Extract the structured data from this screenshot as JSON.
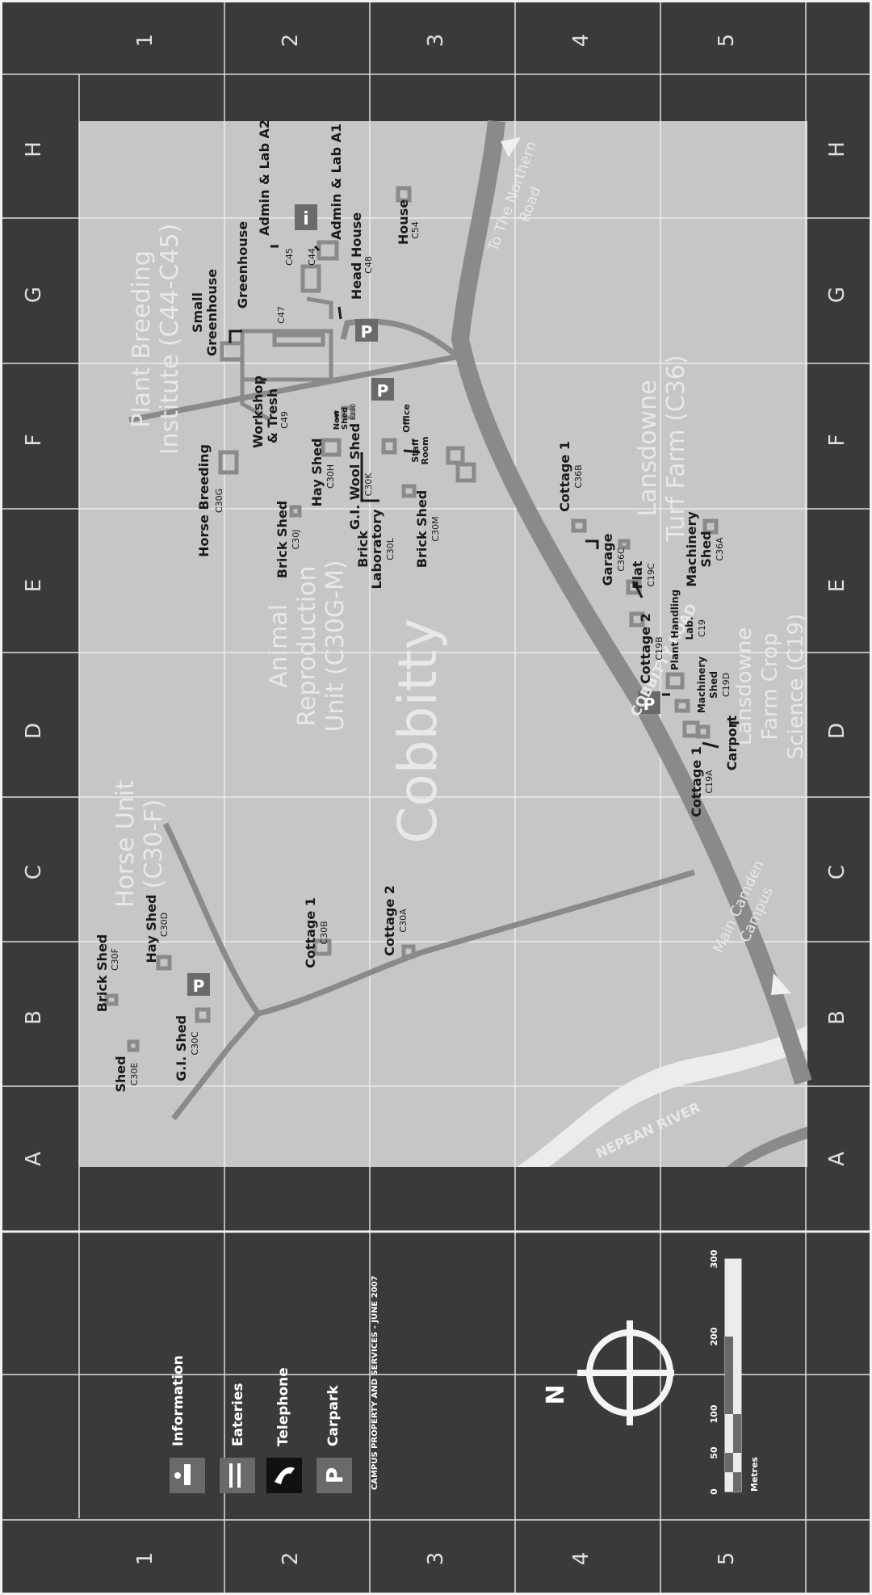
{
  "grid": {
    "columns": [
      "H",
      "G",
      "F",
      "E",
      "D",
      "C",
      "B",
      "A"
    ],
    "rows": [
      "1",
      "2",
      "3",
      "4",
      "5"
    ]
  },
  "zones": {
    "plant_breeding_1": "Plant Breeding",
    "plant_breeding_2": "Institute (C44-C45)",
    "horse_unit_1": "Horse Unit",
    "horse_unit_2": "(C30-F)",
    "animal_repro_1": "Animal",
    "animal_repro_2": "Reproduction",
    "animal_repro_3": "Unit (C30G-M)",
    "lansdowne_turf_1": "Lansdowne",
    "lansdowne_turf_2": "Turf Farm (C36)",
    "lansdowne_crop_1": "Lansdowne",
    "lansdowne_crop_2": "Farm Crop",
    "lansdowne_crop_3": "Science (C19)",
    "locality": "Cobbitty"
  },
  "roads": {
    "cobbitty_road": "COBBITTY ROAD",
    "nepean_river": "NEPEAN RIVER",
    "northern_road_1": "To The Northern",
    "northern_road_2": "Road",
    "main_campus_1": "Main Camden",
    "main_campus_2": "Campus"
  },
  "buildings": {
    "admin_a2": "Admin & Lab A2",
    "admin_a1": "Admin & Lab A1",
    "greenhouse": "Greenhouse",
    "c45": "C45",
    "c44": "C44",
    "small_greenhouse_1": "Small",
    "small_greenhouse_2": "Greenhouse",
    "c47": "C47",
    "head_house": "Head House",
    "c48": "C48",
    "house": "House",
    "c54": "C54",
    "workshop_1": "Workshop",
    "workshop_2": "& Tresh",
    "c49": "C49",
    "new_shed_1": "New",
    "new_shed_2": "Shed",
    "e230": "E230",
    "hay_shed_c30h": "Hay Shed",
    "c30h": "C30H",
    "gi_wool_shed": "G.I. Wool Shed",
    "c30k": "C30K",
    "office": "Office",
    "staff_room_1": "Staff",
    "staff_room_2": "Room",
    "horse_breeding": "Horse Breeding",
    "c30g": "C30G",
    "brick_shed_c30j": "Brick Shed",
    "c30j": "C30J",
    "brick_lab_1": "Brick",
    "brick_lab_2": "Laboratory",
    "c30l": "C30L",
    "brick_shed_c30m": "Brick Shed",
    "c30m": "C30M",
    "cottage1_c36b": "Cottage 1",
    "c36b": "C36B",
    "garage": "Garage",
    "c36c": "C36C",
    "flat": "Flat",
    "c19c": "C19C",
    "machinery_shed_c36a_1": "Machinery",
    "machinery_shed_c36a_2": "Shed",
    "c36a": "C36A",
    "cottage2_c19b": "Cottage 2",
    "c19b": "C19B",
    "plant_handling": "Plant Handling",
    "lab": "Lab.",
    "c19": "C19",
    "machinery_shed_c19d_1": "Machinery",
    "machinery_shed_c19d_2": "Shed",
    "c19d": "C19D",
    "cottage1_c19a": "Cottage 1",
    "c19a": "C19A",
    "carport": "Carport",
    "shed_c30e": "Shed",
    "c30e": "C30E",
    "brick_shed_c30f": "Brick Shed",
    "c30f": "C30F",
    "hay_shed_c30d": "Hay Shed",
    "c30d": "C30D",
    "gi_shed": "G.I. Shed",
    "c30c": "C30C",
    "cottage1_c30b": "Cottage 1",
    "c30b": "C30B",
    "cottage2_c30a": "Cottage 2",
    "c30a": "C30A"
  },
  "markers": {
    "parking": "P",
    "info": "i"
  },
  "legend": {
    "information": "Information",
    "eateries": "Eateries",
    "telephone": "Telephone",
    "carpark": "Carpark",
    "credit": "CAMPUS PROPERTY AND SERVICES - JUNE 2007"
  },
  "compass": {
    "north": "N"
  },
  "scale": {
    "ticks": [
      "0",
      "50",
      "100",
      "200",
      "300"
    ],
    "unit": "Metres"
  },
  "colors": {
    "background": "#3a3a3a",
    "map": "#c6c6c6",
    "road": "#8a8a8a",
    "river": "#e8e8e8",
    "building": "#9a9a9a"
  }
}
